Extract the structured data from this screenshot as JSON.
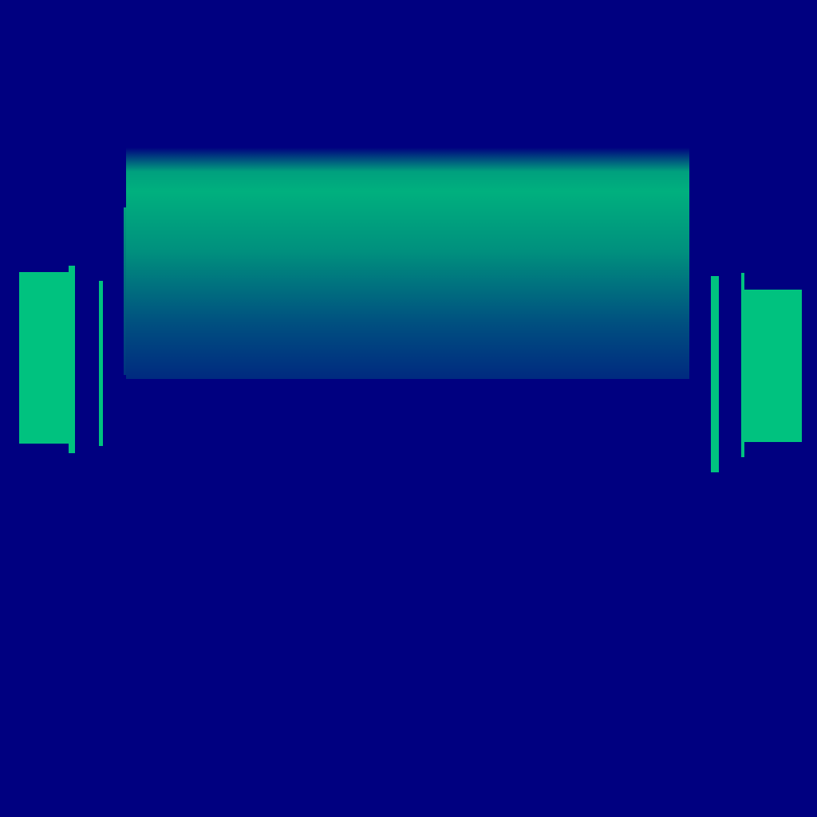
{
  "scene": {
    "background_color": "#000080",
    "accent_color": "#00C27F",
    "band_gradient": [
      "#00B07E",
      "#002A80"
    ],
    "elements": [
      "central-gradient-band",
      "left-block",
      "left-bar-outer",
      "left-bar-inner",
      "right-bar-inner",
      "right-bar-outer",
      "right-block"
    ]
  }
}
